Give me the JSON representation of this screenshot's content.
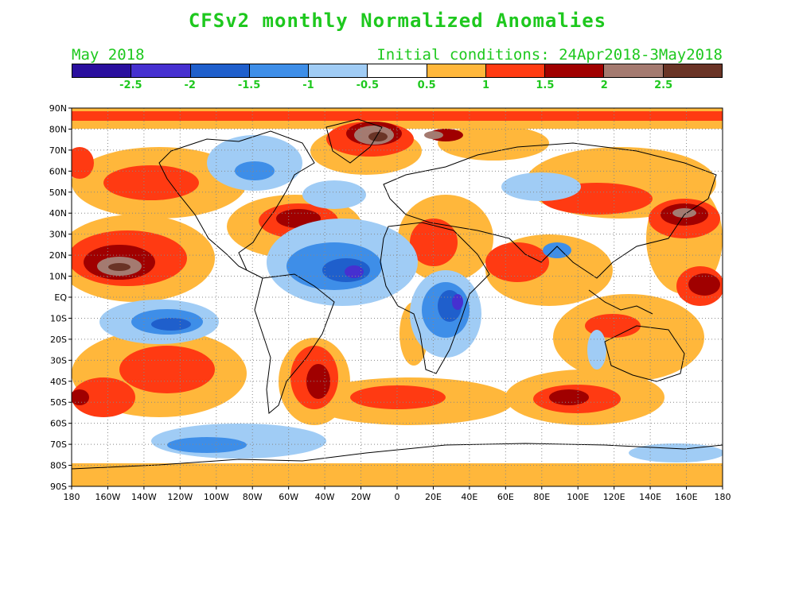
{
  "title": "CFSv2 monthly Normalized Anomalies",
  "period": "May 2018",
  "init_label": "Initial conditions: 24Apr2018-3May2018",
  "colorbar": {
    "colors": [
      "#2a0f9e",
      "#4630d0",
      "#1f5fcc",
      "#3e8ee8",
      "#a0ccf5",
      "#ffffff",
      "#ffb73b",
      "#ff3a12",
      "#a00000",
      "#a47a70",
      "#6a3426"
    ],
    "labels": [
      "-2.5",
      "-2",
      "-1.5",
      "-1",
      "-0.5",
      "0.5",
      "1",
      "1.5",
      "2",
      "2.5"
    ]
  },
  "map": {
    "lat_labels": [
      "90N",
      "80N",
      "70N",
      "60N",
      "50N",
      "40N",
      "30N",
      "20N",
      "10N",
      "EQ",
      "10S",
      "20S",
      "30S",
      "40S",
      "50S",
      "60S",
      "70S",
      "80S",
      "90S"
    ],
    "lon_labels": [
      "180",
      "160W",
      "140W",
      "120W",
      "100W",
      "80W",
      "60W",
      "40W",
      "20W",
      "0",
      "20E",
      "40E",
      "60E",
      "80E",
      "100E",
      "120E",
      "140E",
      "160E",
      "180"
    ]
  }
}
